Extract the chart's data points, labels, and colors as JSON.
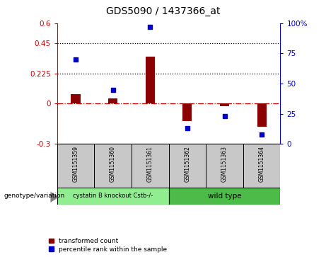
{
  "title": "GDS5090 / 1437366_at",
  "samples": [
    "GSM1151359",
    "GSM1151360",
    "GSM1151361",
    "GSM1151362",
    "GSM1151363",
    "GSM1151364"
  ],
  "transformed_count": [
    0.07,
    0.04,
    0.35,
    -0.13,
    -0.02,
    -0.17
  ],
  "percentile_rank_pct": [
    70,
    45,
    97,
    13,
    23,
    8
  ],
  "bar_color": "#8B0000",
  "dot_color": "#0000CC",
  "left_ylim": [
    -0.3,
    0.6
  ],
  "left_yticks": [
    -0.3,
    0,
    0.225,
    0.45,
    0.6
  ],
  "left_ytick_labels": [
    "-0.3",
    "0",
    "0.225",
    "0.45",
    "0.6"
  ],
  "right_ylim": [
    0,
    100
  ],
  "right_yticks": [
    0,
    25,
    50,
    75,
    100
  ],
  "right_ytick_labels": [
    "0",
    "25",
    "50",
    "75",
    "100%"
  ],
  "hline_dotted": [
    0.225,
    0.45
  ],
  "hline_dashdot_color": "#CC0000",
  "group1_label": "cystatin B knockout Cstb-/-",
  "group1_color": "#90EE90",
  "group2_label": "wild type",
  "group2_color": "#4CBB47",
  "genotype_label": "genotype/variation",
  "legend_red_label": "transformed count",
  "legend_blue_label": "percentile rank within the sample",
  "bg_plot": "#FFFFFF",
  "bg_label_area": "#C8C8C8",
  "bar_width": 0.25
}
